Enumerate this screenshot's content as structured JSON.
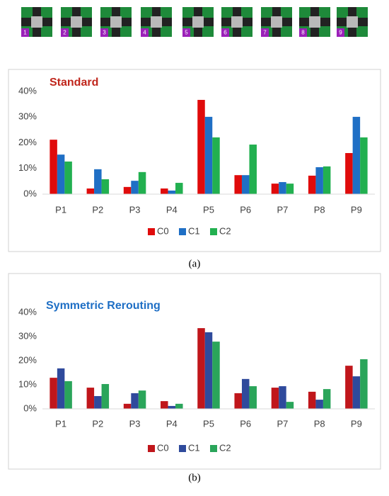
{
  "pattern_labels": [
    "1",
    "2",
    "3",
    "4",
    "5",
    "6",
    "7",
    "8",
    "9"
  ],
  "chart_data": [
    {
      "type": "bar",
      "title": "Standard",
      "title_color": "#c0261c",
      "caption": "(a)",
      "categories": [
        "P1",
        "P2",
        "P3",
        "P4",
        "P5",
        "P6",
        "P7",
        "P8",
        "P9"
      ],
      "series": [
        {
          "name": "C0",
          "color": "#e00b0b",
          "values": [
            21.2,
            2.2,
            2.8,
            2.2,
            36.7,
            7.4,
            4.1,
            7.2,
            16.0
          ]
        },
        {
          "name": "C1",
          "color": "#1f6fc5",
          "values": [
            15.4,
            9.7,
            5.2,
            1.4,
            30.1,
            7.4,
            4.7,
            10.5,
            30.1
          ]
        },
        {
          "name": "C2",
          "color": "#22b050",
          "values": [
            12.7,
            5.8,
            8.6,
            4.4,
            22.1,
            19.3,
            4.1,
            10.8,
            22.1
          ]
        }
      ],
      "ylim": [
        0,
        40
      ],
      "yticks": [
        {
          "value": 0,
          "label": "0%"
        },
        {
          "value": 10,
          "label": "10%"
        },
        {
          "value": 20,
          "label": "20%"
        },
        {
          "value": 30,
          "label": "30%"
        },
        {
          "value": 40,
          "label": "40%"
        }
      ],
      "grid": false,
      "legend": "bottom"
    },
    {
      "type": "bar",
      "title": "Symmetric Rerouting",
      "title_color": "#1f6fc5",
      "caption": "(b)",
      "categories": [
        "P1",
        "P2",
        "P3",
        "P4",
        "P5",
        "P6",
        "P7",
        "P8",
        "P9"
      ],
      "series": [
        {
          "name": "C0",
          "color": "#c0161b",
          "values": [
            12.9,
            8.8,
            2.1,
            3.2,
            33.5,
            6.5,
            8.8,
            7.1,
            17.9
          ]
        },
        {
          "name": "C1",
          "color": "#2f4a9c",
          "values": [
            16.8,
            5.3,
            6.5,
            1.2,
            31.8,
            12.4,
            9.4,
            3.8,
            13.5
          ]
        },
        {
          "name": "C2",
          "color": "#2aa55a",
          "values": [
            11.5,
            10.3,
            7.6,
            2.1,
            27.9,
            9.4,
            2.9,
            8.2,
            20.6
          ]
        }
      ],
      "ylim": [
        0,
        40
      ],
      "yticks": [
        {
          "value": 0,
          "label": "0%"
        },
        {
          "value": 10,
          "label": "10%"
        },
        {
          "value": 20,
          "label": "20%"
        },
        {
          "value": 30,
          "label": "30%"
        },
        {
          "value": 40,
          "label": "40%"
        }
      ],
      "grid": false,
      "legend": "bottom"
    }
  ]
}
